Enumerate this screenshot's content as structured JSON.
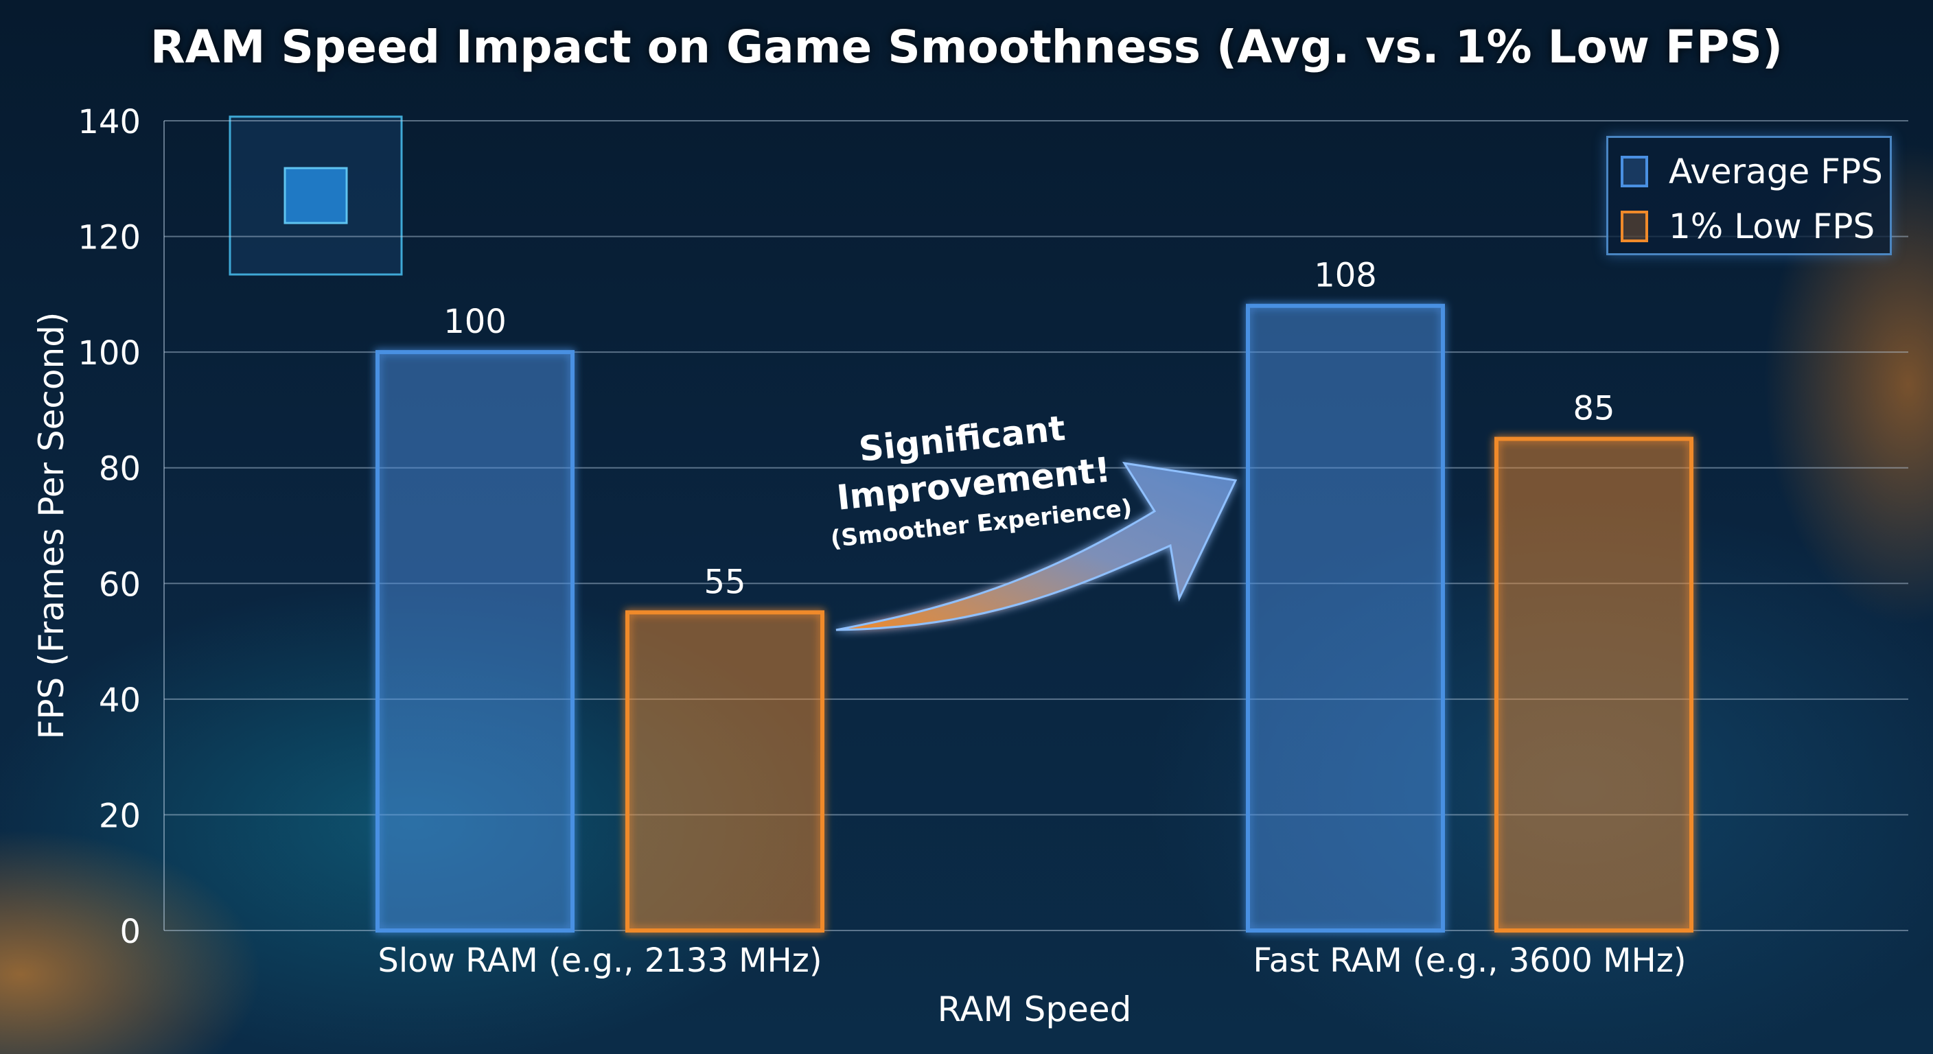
{
  "chart_data": {
    "type": "bar",
    "title": "RAM Speed Impact on Game Smoothness (Avg. vs. 1% Low FPS)",
    "xlabel": "RAM Speed",
    "ylabel": "FPS (Frames Per Second)",
    "categories": [
      "Slow RAM (e.g., 2133 MHz)",
      "Fast RAM (e.g., 3600 MHz)"
    ],
    "series": [
      {
        "name": "Average FPS",
        "values": [
          100,
          108
        ],
        "color": "#4a90e2"
      },
      {
        "name": "1% Low FPS",
        "values": [
          55,
          85
        ],
        "color": "#f08a2a"
      }
    ],
    "ylim": [
      0,
      140
    ],
    "yticks": [
      0,
      20,
      40,
      60,
      80,
      100,
      120,
      140
    ],
    "grid": true,
    "legend": "top-right",
    "annotation": {
      "line1": "Significant",
      "line2": "Improvement!",
      "line3": "(Smoother Experience)"
    }
  }
}
